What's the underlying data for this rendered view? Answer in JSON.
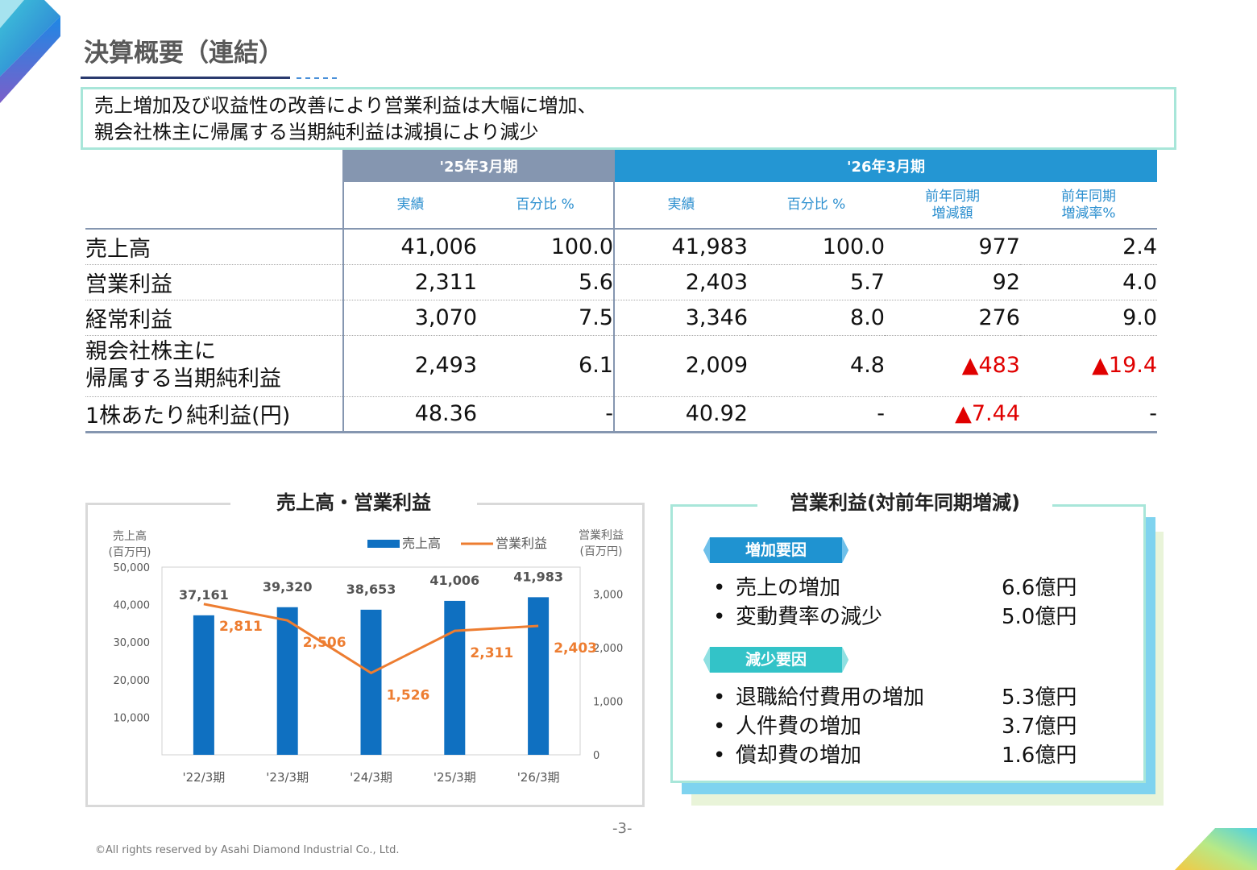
{
  "page": {
    "title": "決算概要（連結）",
    "summary_lines": [
      "売上増加及び収益性の改善により営業利益は大幅に増加、",
      "親会社株主に帰属する当期純利益は減損により減少"
    ],
    "page_number": "-3-",
    "copyright": "©All rights reserved by Asahi Diamond Industrial Co., Ltd."
  },
  "table": {
    "period_prev": "'25年3月期",
    "period_curr": "'26年3月期",
    "sub_headers": {
      "actual": "実績",
      "ratio": "百分比 %",
      "yoy_amount_l1": "前年同期",
      "yoy_amount_l2": "増減額",
      "yoy_rate_l1": "前年同期",
      "yoy_rate_l2": "増減率%"
    },
    "rows": [
      {
        "label": "売上高",
        "label2": "",
        "prev_actual": "41,006",
        "prev_ratio": "100.0",
        "curr_actual": "41,983",
        "curr_ratio": "100.0",
        "yoy_amount": "977",
        "yoy_rate": "2.4"
      },
      {
        "label": "営業利益",
        "label2": "",
        "prev_actual": "2,311",
        "prev_ratio": "5.6",
        "curr_actual": "2,403",
        "curr_ratio": "5.7",
        "yoy_amount": "92",
        "yoy_rate": "4.0"
      },
      {
        "label": "経常利益",
        "label2": "",
        "prev_actual": "3,070",
        "prev_ratio": "7.5",
        "curr_actual": "3,346",
        "curr_ratio": "8.0",
        "yoy_amount": "276",
        "yoy_rate": "9.0"
      },
      {
        "label": "親会社株主に",
        "label2": "帰属する当期純利益",
        "prev_actual": "2,493",
        "prev_ratio": "6.1",
        "curr_actual": "2,009",
        "curr_ratio": "4.8",
        "yoy_amount": "▲483",
        "yoy_rate": "▲19.4"
      },
      {
        "label": "1株あたり純利益(円)",
        "label2": "",
        "prev_actual": "48.36",
        "prev_ratio": "-",
        "curr_actual": "40.92",
        "curr_ratio": "-",
        "yoy_amount": "▲7.44",
        "yoy_rate": "-"
      }
    ],
    "negative_color": "#e00000"
  },
  "chart_data": {
    "type": "bar",
    "title": "売上高・営業利益",
    "categories": [
      "'22/3期",
      "'23/3期",
      "'24/3期",
      "'25/3期",
      "'26/3期"
    ],
    "series": [
      {
        "name": "売上高",
        "type": "bar",
        "axis": "left",
        "values": [
          37161,
          39320,
          38653,
          41006,
          41983
        ],
        "labels": [
          "37,161",
          "39,320",
          "38,653",
          "41,006",
          "41,983"
        ],
        "color": "#0f70c1"
      },
      {
        "name": "営業利益",
        "type": "line",
        "axis": "right",
        "values": [
          2811,
          2506,
          1526,
          2311,
          2403
        ],
        "labels": [
          "2,811",
          "2,506",
          "1,526",
          "2,311",
          "2,403"
        ],
        "color": "#ed7d31"
      }
    ],
    "ylabel_left_l1": "売上高",
    "ylabel_left_l2": "(百万円)",
    "ylabel_right_l1": "営業利益",
    "ylabel_right_l2": "(百万円)",
    "ylim_left": [
      0,
      50000
    ],
    "yticks_left": [
      "50,000",
      "40,000",
      "30,000",
      "20,000",
      "10,000"
    ],
    "yticks_left_values": [
      50000,
      40000,
      30000,
      20000,
      10000
    ],
    "ylim_right": [
      0,
      3500
    ],
    "yticks_right": [
      "3,000",
      "2,000",
      "1,000",
      "0"
    ],
    "yticks_right_values": [
      3000,
      2000,
      1000,
      0
    ],
    "legend_position": "top-right",
    "grid": false
  },
  "change": {
    "title": "営業利益(対前年同期増減)",
    "increase_label": "増加要因",
    "increase_color": "#1f93d1",
    "increase_items": [
      {
        "name": "売上の増加",
        "value": "6.6億円"
      },
      {
        "name": "変動費率の減少",
        "value": "5.0億円"
      }
    ],
    "decrease_label": "減少要因",
    "decrease_color": "#33c3c8",
    "decrease_items": [
      {
        "name": "退職給付費用の増加",
        "value": "5.3億円"
      },
      {
        "name": "人件費の増加",
        "value": "3.7億円"
      },
      {
        "name": "償却費の増加",
        "value": "1.6億円"
      }
    ],
    "bullet": "•"
  }
}
